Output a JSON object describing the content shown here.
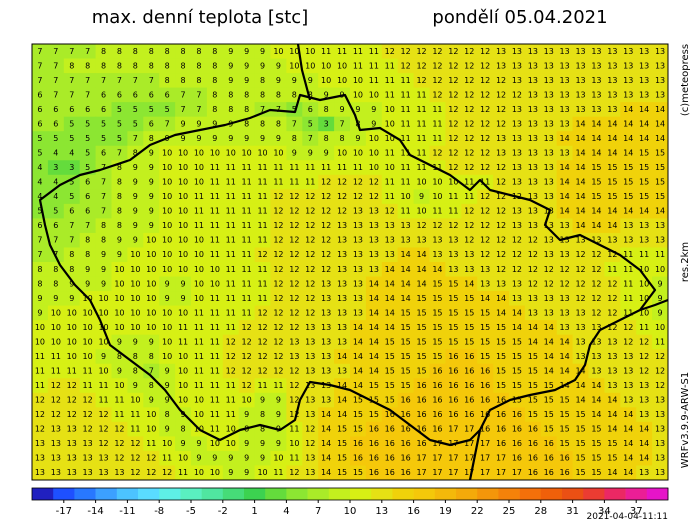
{
  "header": {
    "title": "max. denní teplota [stc]",
    "date": "pondělí 05.04.2021"
  },
  "side": {
    "copyright": "(c)meteopress",
    "resolution": "res.2km",
    "model": "WRFv3.9.9-ARW-S1"
  },
  "footer": {
    "timestamp": "2021-04-04-11:11"
  },
  "colorbar": {
    "lim": [
      -20,
      40
    ],
    "colors": [
      "#2020c0",
      "#1e50ff",
      "#2878ff",
      "#3ca0ff",
      "#4cc3ff",
      "#5adcff",
      "#5ef0e6",
      "#5af0c0",
      "#50e6a0",
      "#46dc78",
      "#3cd250",
      "#64dc3c",
      "#8ce632",
      "#aaeb28",
      "#c3f01e",
      "#d7f014",
      "#e6e114",
      "#f0d20a",
      "#f5c80a",
      "#f5b90a",
      "#f5aa0a",
      "#f5960a",
      "#f5820a",
      "#f5700a",
      "#f0600a",
      "#eb5014",
      "#eb3c32",
      "#eb2864",
      "#eb1e96",
      "#e614c8"
    ],
    "ticks": [
      -17,
      -14,
      -11,
      -8,
      -5,
      -2,
      1,
      4,
      7,
      10,
      13,
      16,
      19,
      22,
      25,
      28,
      31,
      34,
      37
    ]
  },
  "grid": {
    "rows": [
      [
        7,
        7,
        7,
        7,
        8,
        8,
        8,
        8,
        8,
        8,
        8,
        8,
        9,
        9,
        9,
        10,
        10,
        10,
        11,
        11,
        11,
        11,
        12,
        12,
        12,
        12,
        12,
        12,
        12,
        13,
        13,
        13,
        13,
        13,
        13,
        13,
        13,
        13,
        13,
        13
      ],
      [
        7,
        7,
        8,
        8,
        8,
        8,
        8,
        8,
        8,
        8,
        8,
        8,
        9,
        9,
        9,
        9,
        10,
        10,
        10,
        10,
        11,
        11,
        11,
        12,
        12,
        12,
        12,
        12,
        12,
        13,
        13,
        13,
        13,
        13,
        13,
        13,
        13,
        13,
        13,
        13
      ],
      [
        7,
        7,
        7,
        7,
        7,
        7,
        7,
        7,
        8,
        8,
        8,
        8,
        9,
        9,
        8,
        9,
        9,
        9,
        10,
        10,
        10,
        11,
        11,
        11,
        12,
        12,
        12,
        12,
        12,
        12,
        13,
        13,
        13,
        13,
        13,
        13,
        13,
        13,
        13,
        13
      ],
      [
        6,
        7,
        7,
        7,
        6,
        6,
        6,
        6,
        6,
        7,
        7,
        8,
        8,
        8,
        8,
        8,
        8,
        8,
        9,
        9,
        10,
        10,
        11,
        11,
        11,
        12,
        12,
        12,
        12,
        12,
        12,
        13,
        13,
        13,
        13,
        13,
        13,
        13,
        13,
        13
      ],
      [
        6,
        6,
        6,
        6,
        6,
        5,
        5,
        5,
        5,
        7,
        7,
        8,
        8,
        8,
        7,
        7,
        5,
        6,
        8,
        9,
        9,
        9,
        10,
        11,
        11,
        11,
        12,
        12,
        12,
        12,
        13,
        13,
        13,
        13,
        13,
        13,
        13,
        14,
        14,
        14
      ],
      [
        6,
        6,
        5,
        5,
        5,
        5,
        5,
        6,
        7,
        9,
        9,
        9,
        9,
        8,
        8,
        8,
        7,
        5,
        3,
        7,
        8,
        9,
        10,
        11,
        11,
        11,
        12,
        12,
        12,
        12,
        13,
        13,
        13,
        13,
        14,
        14,
        14,
        14,
        14,
        14
      ],
      [
        5,
        5,
        5,
        5,
        5,
        5,
        7,
        8,
        9,
        9,
        9,
        9,
        9,
        9,
        9,
        9,
        8,
        7,
        8,
        8,
        9,
        10,
        10,
        11,
        11,
        11,
        12,
        12,
        12,
        13,
        13,
        13,
        13,
        14,
        14,
        14,
        14,
        14,
        14,
        14
      ],
      [
        5,
        4,
        4,
        5,
        6,
        7,
        8,
        9,
        10,
        10,
        10,
        10,
        10,
        10,
        10,
        10,
        9,
        9,
        9,
        10,
        10,
        10,
        11,
        11,
        11,
        12,
        12,
        12,
        12,
        13,
        13,
        13,
        13,
        13,
        14,
        14,
        14,
        14,
        15,
        15
      ],
      [
        4,
        3,
        3,
        5,
        7,
        8,
        9,
        9,
        10,
        10,
        10,
        11,
        11,
        11,
        11,
        11,
        11,
        11,
        11,
        11,
        11,
        10,
        10,
        11,
        11,
        11,
        12,
        12,
        12,
        12,
        13,
        13,
        13,
        14,
        14,
        15,
        15,
        15,
        15,
        15
      ],
      [
        4,
        4,
        5,
        6,
        7,
        8,
        9,
        9,
        10,
        10,
        10,
        11,
        11,
        11,
        11,
        11,
        11,
        11,
        12,
        12,
        12,
        12,
        11,
        11,
        10,
        10,
        10,
        11,
        11,
        12,
        13,
        13,
        13,
        14,
        14,
        15,
        15,
        15,
        15,
        15
      ],
      [
        4,
        4,
        5,
        6,
        7,
        8,
        9,
        9,
        10,
        10,
        11,
        11,
        11,
        11,
        11,
        12,
        12,
        12,
        12,
        12,
        12,
        12,
        11,
        10,
        9,
        10,
        11,
        11,
        12,
        12,
        12,
        13,
        13,
        14,
        14,
        15,
        15,
        15,
        15,
        15
      ],
      [
        5,
        5,
        6,
        6,
        7,
        8,
        9,
        9,
        10,
        10,
        11,
        11,
        11,
        11,
        11,
        12,
        12,
        12,
        12,
        12,
        13,
        13,
        12,
        11,
        10,
        11,
        11,
        12,
        12,
        12,
        13,
        13,
        13,
        14,
        14,
        14,
        14,
        14,
        14,
        14
      ],
      [
        6,
        6,
        7,
        7,
        8,
        8,
        9,
        9,
        10,
        10,
        11,
        11,
        11,
        11,
        11,
        12,
        12,
        12,
        12,
        13,
        13,
        13,
        13,
        13,
        12,
        12,
        12,
        12,
        12,
        12,
        13,
        13,
        13,
        13,
        14,
        14,
        14,
        13,
        13,
        13
      ],
      [
        7,
        7,
        7,
        8,
        8,
        9,
        9,
        10,
        10,
        10,
        10,
        11,
        11,
        11,
        11,
        12,
        12,
        12,
        12,
        13,
        13,
        13,
        13,
        13,
        13,
        13,
        13,
        12,
        12,
        12,
        12,
        12,
        13,
        13,
        13,
        13,
        13,
        13,
        13,
        13
      ],
      [
        7,
        7,
        8,
        8,
        9,
        9,
        10,
        10,
        10,
        10,
        10,
        11,
        11,
        11,
        12,
        12,
        12,
        12,
        12,
        13,
        13,
        13,
        13,
        14,
        14,
        13,
        13,
        13,
        12,
        12,
        12,
        12,
        13,
        13,
        12,
        12,
        12,
        11,
        11,
        11
      ],
      [
        8,
        8,
        8,
        9,
        9,
        10,
        10,
        10,
        10,
        10,
        10,
        10,
        11,
        11,
        11,
        12,
        12,
        12,
        12,
        13,
        13,
        13,
        14,
        14,
        14,
        14,
        13,
        13,
        13,
        12,
        12,
        12,
        12,
        12,
        12,
        12,
        11,
        11,
        10,
        10
      ],
      [
        8,
        8,
        9,
        9,
        9,
        10,
        10,
        10,
        9,
        9,
        10,
        10,
        11,
        11,
        11,
        12,
        12,
        12,
        13,
        13,
        13,
        14,
        14,
        14,
        14,
        15,
        15,
        14,
        13,
        13,
        13,
        12,
        12,
        12,
        12,
        12,
        12,
        11,
        10,
        9
      ],
      [
        9,
        9,
        9,
        10,
        10,
        10,
        10,
        10,
        9,
        9,
        10,
        11,
        11,
        11,
        11,
        12,
        12,
        12,
        13,
        13,
        13,
        14,
        14,
        14,
        15,
        15,
        15,
        15,
        14,
        14,
        13,
        13,
        13,
        13,
        12,
        12,
        12,
        11,
        10,
        9
      ],
      [
        9,
        10,
        10,
        10,
        10,
        10,
        10,
        10,
        10,
        10,
        11,
        11,
        11,
        11,
        12,
        12,
        12,
        12,
        13,
        13,
        13,
        14,
        14,
        15,
        15,
        15,
        15,
        15,
        15,
        14,
        14,
        13,
        13,
        13,
        13,
        12,
        12,
        11,
        10,
        9
      ],
      [
        10,
        10,
        10,
        10,
        10,
        10,
        10,
        10,
        10,
        11,
        11,
        11,
        11,
        12,
        12,
        12,
        12,
        13,
        13,
        13,
        14,
        14,
        14,
        15,
        15,
        15,
        15,
        15,
        15,
        15,
        14,
        14,
        14,
        13,
        13,
        13,
        12,
        12,
        11,
        10
      ],
      [
        10,
        10,
        10,
        10,
        10,
        9,
        9,
        9,
        10,
        11,
        11,
        11,
        12,
        12,
        12,
        12,
        13,
        13,
        13,
        13,
        14,
        14,
        15,
        15,
        15,
        15,
        15,
        15,
        15,
        15,
        15,
        14,
        14,
        14,
        13,
        13,
        13,
        12,
        12,
        11
      ],
      [
        11,
        11,
        10,
        10,
        9,
        8,
        8,
        8,
        10,
        10,
        11,
        11,
        12,
        12,
        12,
        12,
        13,
        13,
        13,
        14,
        14,
        14,
        15,
        15,
        15,
        15,
        16,
        16,
        15,
        15,
        15,
        15,
        14,
        14,
        13,
        13,
        13,
        13,
        12,
        12
      ],
      [
        11,
        11,
        11,
        11,
        10,
        9,
        8,
        7,
        9,
        10,
        11,
        11,
        12,
        12,
        12,
        12,
        12,
        13,
        13,
        13,
        14,
        14,
        15,
        15,
        15,
        16,
        16,
        16,
        16,
        15,
        15,
        15,
        14,
        14,
        14,
        13,
        13,
        13,
        12,
        12
      ],
      [
        11,
        12,
        12,
        11,
        11,
        10,
        9,
        8,
        9,
        10,
        11,
        11,
        11,
        12,
        11,
        11,
        12,
        13,
        13,
        14,
        14,
        15,
        15,
        15,
        16,
        16,
        16,
        16,
        16,
        15,
        15,
        15,
        15,
        14,
        14,
        14,
        13,
        13,
        13,
        12
      ],
      [
        12,
        12,
        12,
        12,
        11,
        11,
        10,
        9,
        9,
        10,
        10,
        11,
        11,
        10,
        9,
        9,
        12,
        13,
        13,
        14,
        15,
        15,
        15,
        16,
        16,
        16,
        16,
        16,
        16,
        16,
        15,
        15,
        15,
        15,
        14,
        14,
        14,
        13,
        13,
        13
      ],
      [
        12,
        12,
        12,
        12,
        12,
        11,
        11,
        10,
        8,
        9,
        10,
        11,
        11,
        9,
        8,
        9,
        12,
        13,
        14,
        14,
        15,
        15,
        16,
        16,
        16,
        16,
        16,
        16,
        16,
        16,
        16,
        15,
        15,
        15,
        15,
        14,
        14,
        14,
        13,
        13
      ],
      [
        12,
        13,
        13,
        12,
        12,
        12,
        11,
        10,
        9,
        8,
        10,
        11,
        10,
        8,
        8,
        9,
        11,
        12,
        14,
        15,
        15,
        16,
        16,
        16,
        16,
        16,
        17,
        17,
        16,
        16,
        16,
        16,
        15,
        15,
        15,
        15,
        14,
        14,
        14,
        13
      ],
      [
        13,
        13,
        13,
        13,
        12,
        12,
        12,
        11,
        10,
        9,
        9,
        10,
        10,
        9,
        9,
        9,
        10,
        12,
        14,
        15,
        16,
        16,
        16,
        16,
        16,
        17,
        17,
        17,
        17,
        16,
        16,
        16,
        16,
        15,
        15,
        15,
        15,
        14,
        14,
        13
      ],
      [
        13,
        13,
        13,
        13,
        13,
        12,
        12,
        12,
        11,
        10,
        9,
        9,
        9,
        9,
        9,
        10,
        11,
        13,
        14,
        15,
        16,
        16,
        16,
        16,
        17,
        17,
        17,
        17,
        17,
        17,
        16,
        16,
        16,
        16,
        15,
        15,
        15,
        14,
        14,
        13
      ],
      [
        13,
        13,
        13,
        13,
        13,
        13,
        12,
        12,
        12,
        11,
        10,
        10,
        9,
        9,
        10,
        11,
        12,
        13,
        14,
        15,
        15,
        16,
        16,
        16,
        17,
        17,
        17,
        17,
        17,
        17,
        17,
        16,
        16,
        16,
        15,
        15,
        14,
        14,
        13,
        13
      ]
    ]
  }
}
